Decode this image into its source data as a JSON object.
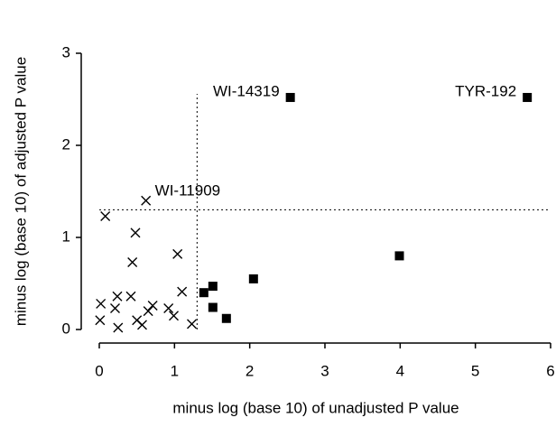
{
  "chart_data": {
    "type": "scatter",
    "xlabel": "minus log (base 10) of unadjusted P value",
    "ylabel": "minus log (base 10) of adjusted P value",
    "xlim": [
      0,
      6
    ],
    "ylim": [
      0,
      3
    ],
    "xticks": [
      0,
      1,
      2,
      3,
      4,
      5,
      6
    ],
    "yticks": [
      0,
      1,
      2,
      3
    ],
    "thresholds": {
      "x": 1.3,
      "y": 1.3
    },
    "series": [
      {
        "marker": "x",
        "color": "#000000",
        "x": [
          0.08,
          0.62,
          0.48,
          0.44,
          1.04,
          0.02,
          0.01,
          0.24,
          0.21,
          0.25,
          0.42,
          0.5,
          0.57,
          0.65,
          0.71,
          0.92,
          0.99,
          1.1,
          1.23
        ],
        "values": [
          1.23,
          1.4,
          1.05,
          0.73,
          0.82,
          0.28,
          0.1,
          0.36,
          0.23,
          0.02,
          0.36,
          0.1,
          0.05,
          0.2,
          0.26,
          0.23,
          0.15,
          0.41,
          0.06
        ],
        "labels": [
          null,
          "WI-11909",
          null,
          null,
          null,
          null,
          null,
          null,
          null,
          null,
          null,
          null,
          null,
          null,
          null,
          null,
          null,
          null,
          null
        ]
      },
      {
        "marker": "square",
        "color": "#000000",
        "x": [
          1.39,
          1.51,
          1.51,
          1.69,
          2.05,
          3.99,
          2.54,
          5.69
        ],
        "values": [
          0.4,
          0.47,
          0.24,
          0.12,
          0.55,
          0.8,
          2.52,
          2.52
        ],
        "labels": [
          null,
          null,
          null,
          null,
          null,
          null,
          "WI-14319",
          "TYR-192"
        ]
      }
    ]
  }
}
